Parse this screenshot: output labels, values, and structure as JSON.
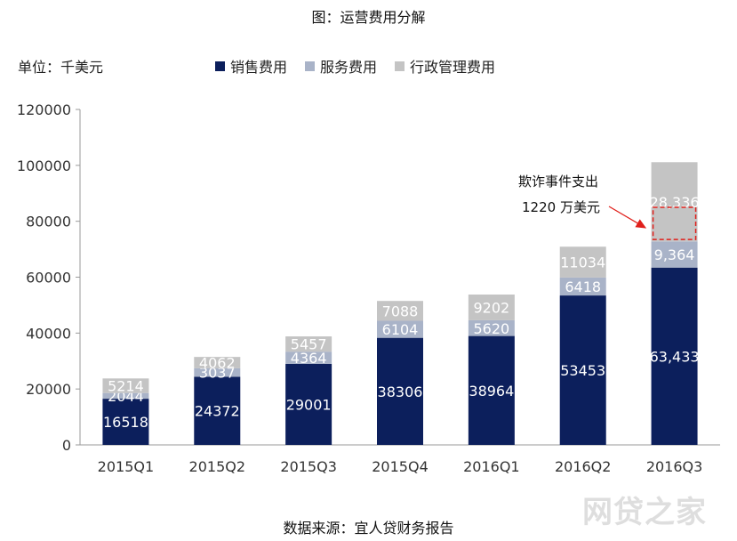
{
  "figure_title": "图：运营费用分解",
  "unit_label": "单位：千美元",
  "source_label": "数据来源：宜人贷财务报告",
  "watermark_text": "网贷之家",
  "annotation": {
    "line1": "欺诈事件支出",
    "line2": "1220 万美元"
  },
  "colors": {
    "sales": "#0c1f5c",
    "service": "#a9b3c8",
    "admin": "#c4c4c4",
    "highlight": "#e0201b"
  },
  "chart_data": {
    "type": "bar",
    "stacked": true,
    "categories": [
      "2015Q1",
      "2015Q2",
      "2015Q3",
      "2015Q4",
      "2016Q1",
      "2016Q2",
      "2016Q3"
    ],
    "series": [
      {
        "name": "销售费用",
        "key": "sales",
        "values": [
          16518,
          24372,
          29001,
          38306,
          38964,
          53453,
          63433
        ],
        "labels": [
          "16518",
          "24372",
          "29001",
          "38306",
          "38964",
          "53453",
          "63,433"
        ]
      },
      {
        "name": "服务费用",
        "key": "service",
        "values": [
          2044,
          3037,
          4364,
          6104,
          5620,
          6418,
          9364
        ],
        "labels": [
          "2044",
          "3037",
          "4364",
          "6104",
          "5620",
          "6418",
          "9,364"
        ]
      },
      {
        "name": "行政管理费用",
        "key": "admin",
        "values": [
          5214,
          4062,
          5457,
          7088,
          9202,
          11034,
          28336
        ],
        "labels": [
          "5214",
          "4062",
          "5457",
          "7088",
          "9202",
          "11034",
          "28,336"
        ]
      }
    ],
    "ylim": [
      0,
      120000
    ],
    "yticks": [
      "0",
      "20000",
      "40000",
      "60000",
      "80000",
      "100000",
      "120000"
    ],
    "highlight_range": [
      73500,
      85000
    ],
    "legend_position": "top",
    "grid": false
  }
}
